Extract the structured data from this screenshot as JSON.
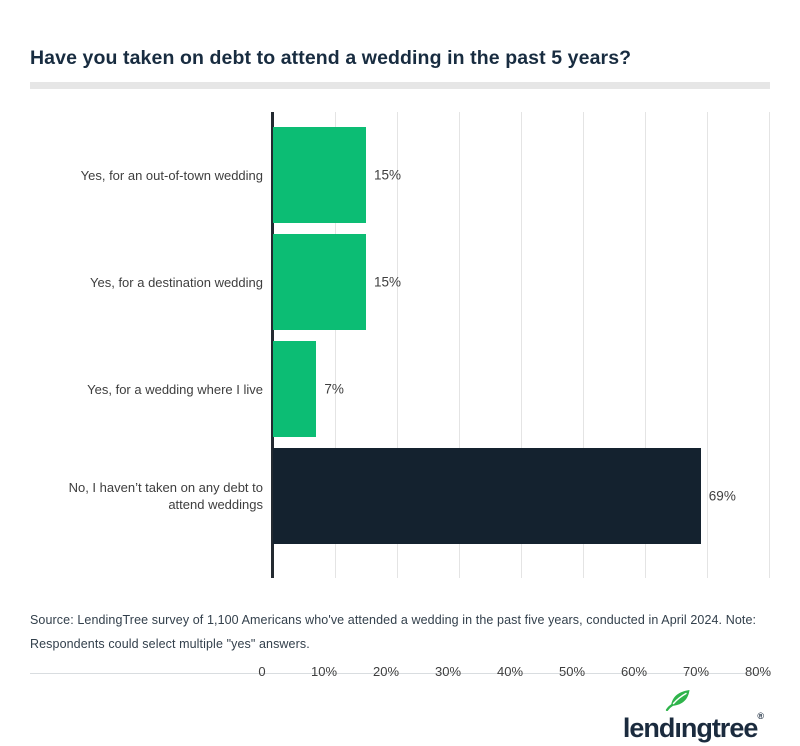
{
  "title": "Have you taken on debt to attend a wedding in the past 5 years?",
  "chart_data": {
    "type": "bar",
    "orientation": "horizontal",
    "title": "Have you taken on debt to attend a wedding in the past 5 years?",
    "categories": [
      "Yes, for an out-of-town wedding",
      "Yes, for a destination wedding",
      "Yes, for a wedding where I live",
      "No, I haven’t taken on any debt to attend weddings"
    ],
    "values": [
      15,
      15,
      7,
      69
    ],
    "value_labels": [
      "15%",
      "15%",
      "7%",
      "69%"
    ],
    "bar_colors": [
      "#0CBD74",
      "#0CBD74",
      "#0CBD74",
      "#14222F"
    ],
    "xlabel": "",
    "ylabel": "",
    "xlim": [
      0,
      80
    ],
    "x_ticks": [
      {
        "value": 0,
        "label": "0"
      },
      {
        "value": 10,
        "label": "10%"
      },
      {
        "value": 20,
        "label": "20%"
      },
      {
        "value": 30,
        "label": "30%"
      },
      {
        "value": 40,
        "label": "40%"
      },
      {
        "value": 50,
        "label": "50%"
      },
      {
        "value": 60,
        "label": "60%"
      },
      {
        "value": 70,
        "label": "70%"
      },
      {
        "value": 80,
        "label": "80%"
      }
    ],
    "grid": true,
    "legend_position": "none"
  },
  "source_note": "Source: LendingTree survey of 1,100 Americans who've attended a wedding in the past five years, conducted in April 2024. Note: Respondents could select multiple \"yes\" answers.",
  "footer": {
    "logo_text": "lendingtree",
    "trademark": "®"
  },
  "colors": {
    "accent_green": "#0CBD74",
    "navy": "#14222F",
    "title_text": "#182C40",
    "axis_line": "#232A31",
    "gridline": "#E4E4E4",
    "label_text": "#3E3E3E",
    "leaf_green": "#2FB44B"
  }
}
